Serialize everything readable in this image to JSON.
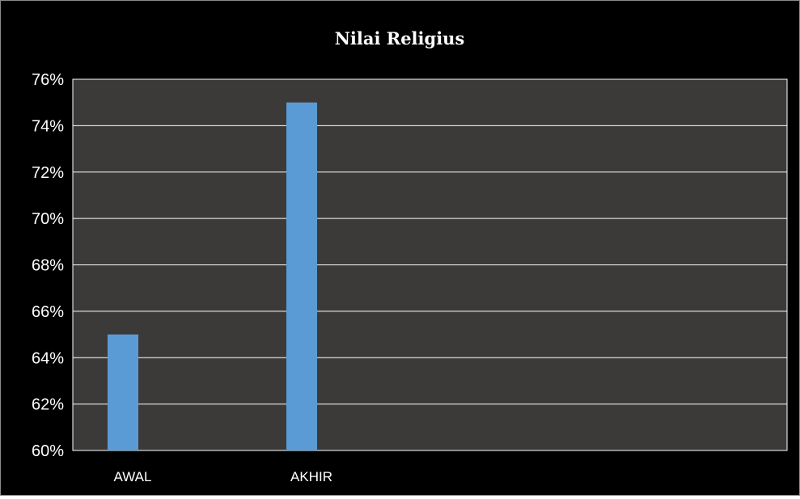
{
  "chart_data": {
    "type": "bar",
    "title": "Nilai Religius",
    "categories": [
      "AWAL",
      "AKHIR"
    ],
    "values": [
      65,
      75
    ],
    "ylim": [
      60,
      76
    ],
    "yticks": [
      "60%",
      "62%",
      "64%",
      "66%",
      "68%",
      "70%",
      "72%",
      "74%",
      "76%"
    ],
    "grid": true,
    "xlabel": "",
    "ylabel": "",
    "colors": {
      "background": "#000000",
      "plot_area": "#3b3a39",
      "bar": "#5b9bd5",
      "grid": "#ffffff",
      "text": "#ffffff"
    }
  }
}
